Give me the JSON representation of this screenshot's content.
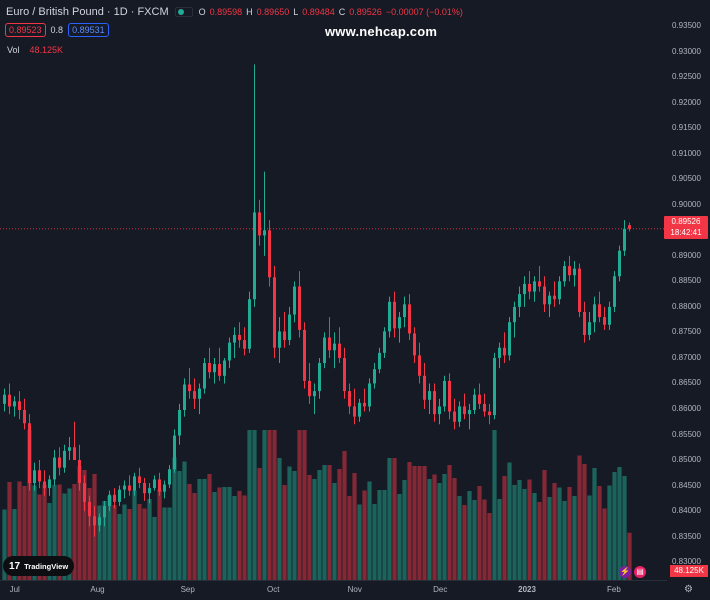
{
  "header": {
    "symbol_title": "Euro / British Pound · 1D · FXCM",
    "ohlc": {
      "open_label": "O",
      "open": "0.89598",
      "high_label": "H",
      "high": "0.89650",
      "low_label": "L",
      "low": "0.89484",
      "close_label": "C",
      "close": "0.89526",
      "change": "−0.00007 (−0.01%)"
    }
  },
  "quote": {
    "bid": "0.89523",
    "spread": "0.8",
    "ask": "0.89531"
  },
  "volume": {
    "label": "Vol",
    "value": "48.125K"
  },
  "watermark": "www.nehcap.com",
  "price_axis": {
    "ticks": [
      "0.93500",
      "0.93000",
      "0.92500",
      "0.92000",
      "0.91500",
      "0.91000",
      "0.90500",
      "0.90000",
      "0.89500",
      "0.89000",
      "0.88500",
      "0.88000",
      "0.87500",
      "0.87000",
      "0.86500",
      "0.86000",
      "0.85500",
      "0.85000",
      "0.84500",
      "0.84000",
      "0.83500",
      "0.83000"
    ],
    "last_price": "0.89526",
    "countdown": "18:42:41",
    "volume_tag": "48.125K"
  },
  "time_axis": {
    "labels": [
      {
        "text": "Jul",
        "bold": false,
        "frac": 0.022
      },
      {
        "text": "Aug",
        "bold": false,
        "frac": 0.146
      },
      {
        "text": "Sep",
        "bold": false,
        "frac": 0.281
      },
      {
        "text": "Oct",
        "bold": false,
        "frac": 0.409
      },
      {
        "text": "Nov",
        "bold": false,
        "frac": 0.531
      },
      {
        "text": "Dec",
        "bold": false,
        "frac": 0.659
      },
      {
        "text": "2023",
        "bold": true,
        "frac": 0.789
      },
      {
        "text": "Feb",
        "bold": false,
        "frac": 0.919
      }
    ]
  },
  "branding": {
    "logo_text": "TradingView",
    "logo_mark": "17"
  },
  "colors": {
    "up": "#22ab94",
    "down": "#f23645",
    "background": "#161a25",
    "text": "#b2b5be"
  },
  "icons": {
    "flash": "flash-icon",
    "news": "news-icon",
    "settings": "gear-icon"
  },
  "chart_data": {
    "type": "candlestick",
    "ylim": [
      0.8265,
      0.9362
    ],
    "period": "Jul 2022 – Feb 2023",
    "values": [
      [
        0.861,
        0.864,
        0.8595,
        0.8628
      ],
      [
        0.8628,
        0.865,
        0.859,
        0.8605
      ],
      [
        0.8605,
        0.8625,
        0.8585,
        0.8615
      ],
      [
        0.8615,
        0.8635,
        0.858,
        0.8598
      ],
      [
        0.8598,
        0.862,
        0.856,
        0.8572
      ],
      [
        0.8572,
        0.859,
        0.844,
        0.8455
      ],
      [
        0.8455,
        0.8495,
        0.844,
        0.848
      ],
      [
        0.848,
        0.85,
        0.8445,
        0.8458
      ],
      [
        0.8458,
        0.848,
        0.843,
        0.8445
      ],
      [
        0.8445,
        0.847,
        0.843,
        0.8462
      ],
      [
        0.8462,
        0.852,
        0.845,
        0.8505
      ],
      [
        0.8505,
        0.8525,
        0.847,
        0.8485
      ],
      [
        0.8485,
        0.853,
        0.8475,
        0.8518
      ],
      [
        0.8518,
        0.8545,
        0.85,
        0.8525
      ],
      [
        0.8525,
        0.8575,
        0.8515,
        0.85
      ],
      [
        0.85,
        0.853,
        0.844,
        0.8455
      ],
      [
        0.8455,
        0.847,
        0.84,
        0.8418
      ],
      [
        0.8418,
        0.843,
        0.837,
        0.839
      ],
      [
        0.839,
        0.841,
        0.835,
        0.8372
      ],
      [
        0.8372,
        0.8395,
        0.836,
        0.8388
      ],
      [
        0.8388,
        0.842,
        0.837,
        0.841
      ],
      [
        0.841,
        0.844,
        0.84,
        0.8432
      ],
      [
        0.8432,
        0.8445,
        0.8405,
        0.8418
      ],
      [
        0.8418,
        0.845,
        0.841,
        0.8442
      ],
      [
        0.8442,
        0.846,
        0.8425,
        0.845
      ],
      [
        0.845,
        0.847,
        0.843,
        0.844
      ],
      [
        0.844,
        0.8475,
        0.843,
        0.8468
      ],
      [
        0.8468,
        0.8485,
        0.8445,
        0.8455
      ],
      [
        0.8455,
        0.8465,
        0.842,
        0.8435
      ],
      [
        0.8435,
        0.8455,
        0.8415,
        0.8445
      ],
      [
        0.8445,
        0.847,
        0.844,
        0.8462
      ],
      [
        0.8462,
        0.8475,
        0.843,
        0.8438
      ],
      [
        0.8438,
        0.846,
        0.8425,
        0.8452
      ],
      [
        0.8452,
        0.849,
        0.8445,
        0.8482
      ],
      [
        0.8482,
        0.856,
        0.8475,
        0.8548
      ],
      [
        0.8548,
        0.861,
        0.853,
        0.8598
      ],
      [
        0.8598,
        0.866,
        0.8585,
        0.8648
      ],
      [
        0.8648,
        0.868,
        0.862,
        0.8635
      ],
      [
        0.8635,
        0.866,
        0.86,
        0.862
      ],
      [
        0.862,
        0.865,
        0.859,
        0.864
      ],
      [
        0.864,
        0.87,
        0.863,
        0.869
      ],
      [
        0.869,
        0.872,
        0.866,
        0.8672
      ],
      [
        0.8672,
        0.87,
        0.865,
        0.8688
      ],
      [
        0.8688,
        0.872,
        0.8655,
        0.8665
      ],
      [
        0.8665,
        0.87,
        0.865,
        0.8695
      ],
      [
        0.8695,
        0.874,
        0.868,
        0.873
      ],
      [
        0.873,
        0.876,
        0.87,
        0.8745
      ],
      [
        0.8745,
        0.877,
        0.872,
        0.8735
      ],
      [
        0.8735,
        0.876,
        0.8705,
        0.8718
      ],
      [
        0.8718,
        0.883,
        0.871,
        0.8815
      ],
      [
        0.8815,
        0.9275,
        0.88,
        0.8985
      ],
      [
        0.8985,
        0.901,
        0.892,
        0.894
      ],
      [
        0.894,
        0.9065,
        0.89,
        0.895
      ],
      [
        0.895,
        0.897,
        0.884,
        0.8858
      ],
      [
        0.8858,
        0.888,
        0.87,
        0.872
      ],
      [
        0.872,
        0.878,
        0.869,
        0.8752
      ],
      [
        0.8752,
        0.879,
        0.872,
        0.8735
      ],
      [
        0.8735,
        0.88,
        0.8725,
        0.8785
      ],
      [
        0.8785,
        0.885,
        0.877,
        0.884
      ],
      [
        0.884,
        0.887,
        0.874,
        0.8755
      ],
      [
        0.8755,
        0.877,
        0.864,
        0.8655
      ],
      [
        0.8655,
        0.869,
        0.861,
        0.8625
      ],
      [
        0.8625,
        0.865,
        0.859,
        0.8635
      ],
      [
        0.8635,
        0.87,
        0.862,
        0.869
      ],
      [
        0.869,
        0.875,
        0.868,
        0.874
      ],
      [
        0.874,
        0.878,
        0.87,
        0.8715
      ],
      [
        0.8715,
        0.875,
        0.868,
        0.8728
      ],
      [
        0.8728,
        0.876,
        0.869,
        0.87
      ],
      [
        0.87,
        0.872,
        0.862,
        0.8635
      ],
      [
        0.8635,
        0.865,
        0.859,
        0.8605
      ],
      [
        0.8605,
        0.864,
        0.857,
        0.8585
      ],
      [
        0.8585,
        0.862,
        0.8575,
        0.8612
      ],
      [
        0.8612,
        0.864,
        0.8595,
        0.8605
      ],
      [
        0.8605,
        0.866,
        0.8595,
        0.865
      ],
      [
        0.865,
        0.869,
        0.864,
        0.8678
      ],
      [
        0.8678,
        0.872,
        0.867,
        0.871
      ],
      [
        0.871,
        0.876,
        0.87,
        0.8752
      ],
      [
        0.8752,
        0.882,
        0.874,
        0.881
      ],
      [
        0.881,
        0.883,
        0.874,
        0.8758
      ],
      [
        0.8758,
        0.879,
        0.873,
        0.878
      ],
      [
        0.878,
        0.882,
        0.876,
        0.8805
      ],
      [
        0.8805,
        0.8825,
        0.8735,
        0.8748
      ],
      [
        0.8748,
        0.876,
        0.869,
        0.8705
      ],
      [
        0.8705,
        0.873,
        0.865,
        0.8665
      ],
      [
        0.8665,
        0.869,
        0.86,
        0.8618
      ],
      [
        0.8618,
        0.865,
        0.859,
        0.8635
      ],
      [
        0.8635,
        0.865,
        0.8575,
        0.859
      ],
      [
        0.859,
        0.862,
        0.857,
        0.8605
      ],
      [
        0.8605,
        0.8665,
        0.8595,
        0.8655
      ],
      [
        0.8655,
        0.867,
        0.858,
        0.8595
      ],
      [
        0.8595,
        0.862,
        0.856,
        0.8575
      ],
      [
        0.8575,
        0.8615,
        0.8565,
        0.8605
      ],
      [
        0.8605,
        0.863,
        0.858,
        0.859
      ],
      [
        0.859,
        0.861,
        0.856,
        0.8598
      ],
      [
        0.8598,
        0.864,
        0.859,
        0.8628
      ],
      [
        0.8628,
        0.865,
        0.86,
        0.861
      ],
      [
        0.861,
        0.863,
        0.8585,
        0.8595
      ],
      [
        0.8595,
        0.861,
        0.857,
        0.8588
      ],
      [
        0.8588,
        0.871,
        0.858,
        0.87
      ],
      [
        0.87,
        0.873,
        0.868,
        0.872
      ],
      [
        0.872,
        0.875,
        0.869,
        0.8705
      ],
      [
        0.8705,
        0.878,
        0.8695,
        0.877
      ],
      [
        0.877,
        0.881,
        0.874,
        0.88
      ],
      [
        0.88,
        0.884,
        0.878,
        0.8825
      ],
      [
        0.8825,
        0.886,
        0.88,
        0.8845
      ],
      [
        0.8845,
        0.887,
        0.8815,
        0.883
      ],
      [
        0.883,
        0.886,
        0.881,
        0.885
      ],
      [
        0.885,
        0.888,
        0.883,
        0.884
      ],
      [
        0.884,
        0.886,
        0.879,
        0.8805
      ],
      [
        0.8805,
        0.883,
        0.878,
        0.8822
      ],
      [
        0.8822,
        0.885,
        0.88,
        0.8815
      ],
      [
        0.8815,
        0.886,
        0.8805,
        0.885
      ],
      [
        0.885,
        0.889,
        0.884,
        0.888
      ],
      [
        0.888,
        0.89,
        0.885,
        0.8862
      ],
      [
        0.8862,
        0.889,
        0.884,
        0.8875
      ],
      [
        0.8875,
        0.8885,
        0.878,
        0.879
      ],
      [
        0.879,
        0.881,
        0.873,
        0.8745
      ],
      [
        0.8745,
        0.879,
        0.8735,
        0.877
      ],
      [
        0.877,
        0.882,
        0.875,
        0.8805
      ],
      [
        0.8805,
        0.883,
        0.877,
        0.878
      ],
      [
        0.878,
        0.88,
        0.8755,
        0.8765
      ],
      [
        0.8765,
        0.881,
        0.8755,
        0.88
      ],
      [
        0.88,
        0.887,
        0.879,
        0.886
      ],
      [
        0.886,
        0.892,
        0.885,
        0.891
      ],
      [
        0.891,
        0.897,
        0.89,
        0.8953
      ],
      [
        0.896,
        0.8965,
        0.8948,
        0.8953
      ]
    ]
  }
}
